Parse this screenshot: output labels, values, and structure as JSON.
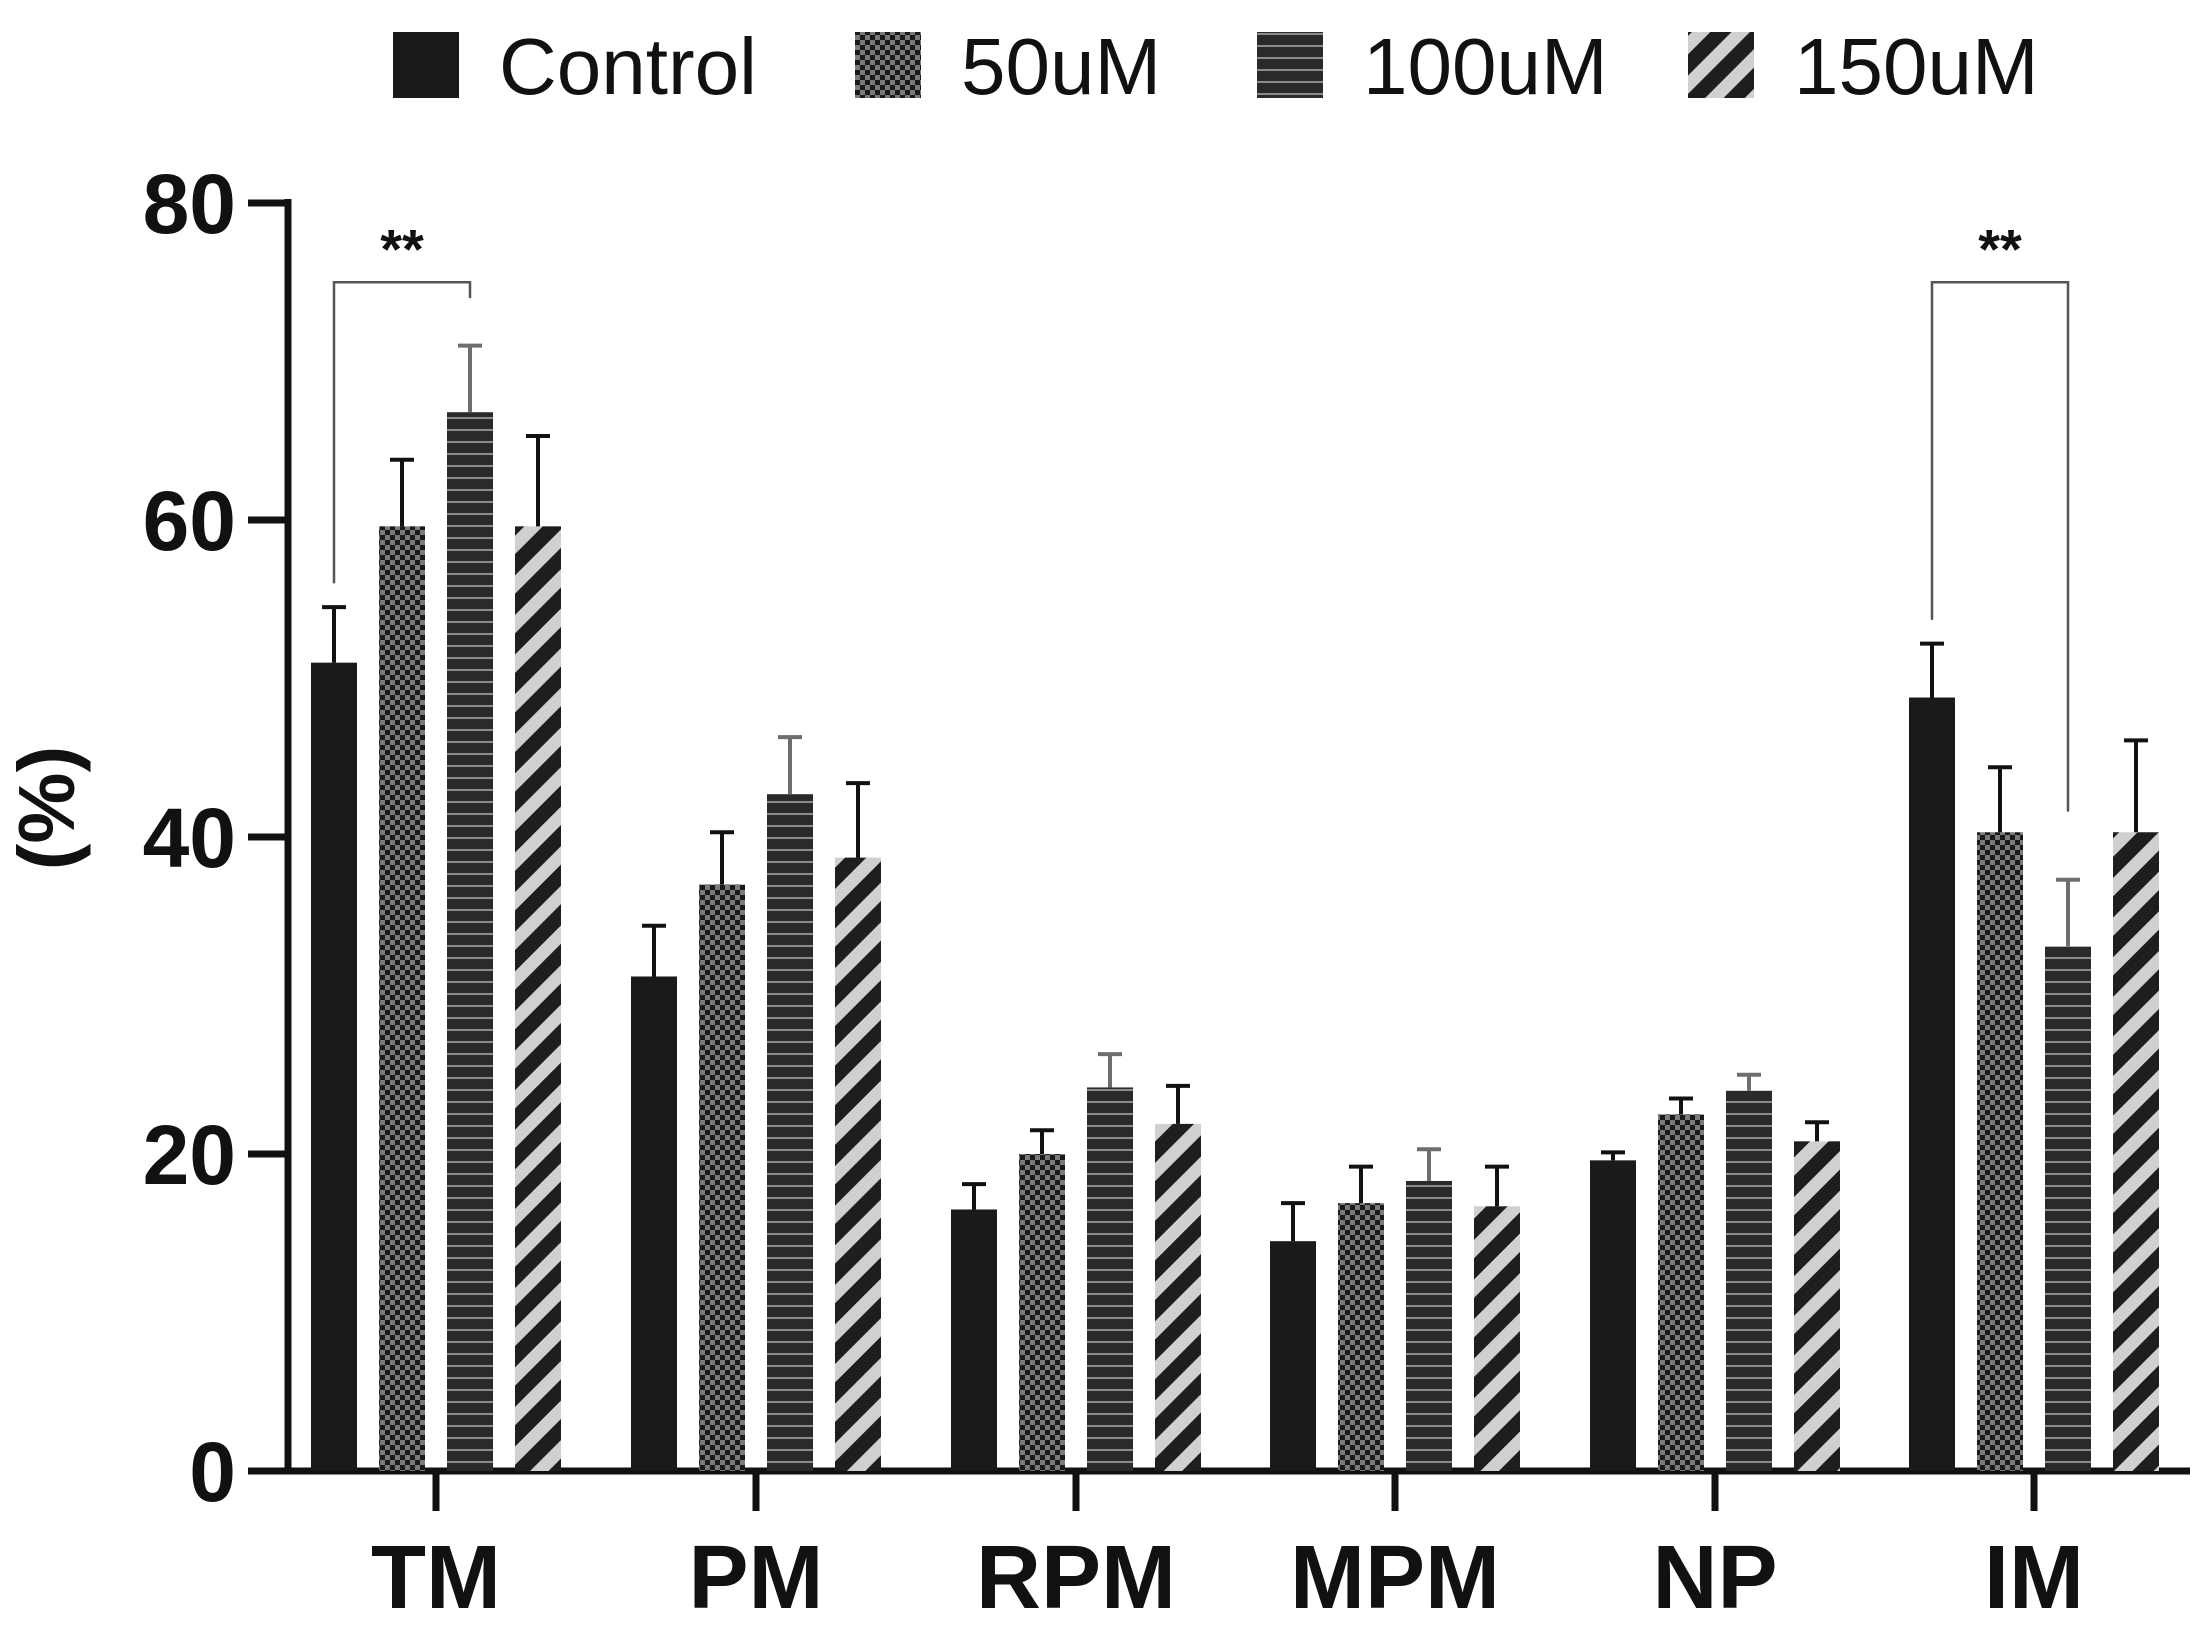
{
  "chart_data": {
    "type": "bar",
    "title": "",
    "xlabel": "",
    "ylabel": "(%)",
    "ylim": [
      0,
      80
    ],
    "yticks": [
      0,
      20,
      40,
      60,
      80
    ],
    "grid": false,
    "legend_position": "top",
    "categories": [
      "TM",
      "PM",
      "RPM",
      "MPM",
      "NP",
      "IM"
    ],
    "series": [
      {
        "name": "Control",
        "pattern": "solid",
        "values": [
          51,
          31.2,
          16.5,
          14.5,
          19.6,
          48.8
        ],
        "errors": [
          3.5,
          3.2,
          1.6,
          2.4,
          0.5,
          3.4
        ]
      },
      {
        "name": "50uM",
        "pattern": "checker",
        "values": [
          59.6,
          37,
          20,
          16.9,
          22.5,
          40.3
        ],
        "errors": [
          4.2,
          3.3,
          1.5,
          2.3,
          1.0,
          4.1
        ]
      },
      {
        "name": "100uM",
        "pattern": "horizontal-lines",
        "values": [
          66.8,
          42.7,
          24.2,
          18.3,
          24,
          33.1
        ],
        "errors": [
          4.2,
          3.6,
          2.1,
          2.0,
          1.0,
          4.2
        ]
      },
      {
        "name": "150uM",
        "pattern": "diagonal-stripes",
        "values": [
          59.6,
          38.7,
          21.9,
          16.7,
          20.8,
          40.3
        ],
        "errors": [
          5.7,
          4.7,
          2.4,
          2.5,
          1.2,
          5.8
        ]
      }
    ],
    "annotations": [
      {
        "text": "**",
        "category": "TM",
        "from_series": "Control",
        "to_series": "100uM",
        "bracket_top": 75
      },
      {
        "text": "**",
        "category": "IM",
        "from_series": "Control",
        "to_series": "100uM",
        "bracket_top": 75
      }
    ],
    "colors": {
      "bar_dark": "#1a1a1a",
      "pattern_light": "#c8c8c8",
      "pattern_mid": "#6e6e6e",
      "axis": "#111111",
      "bracket": "#555555"
    }
  }
}
